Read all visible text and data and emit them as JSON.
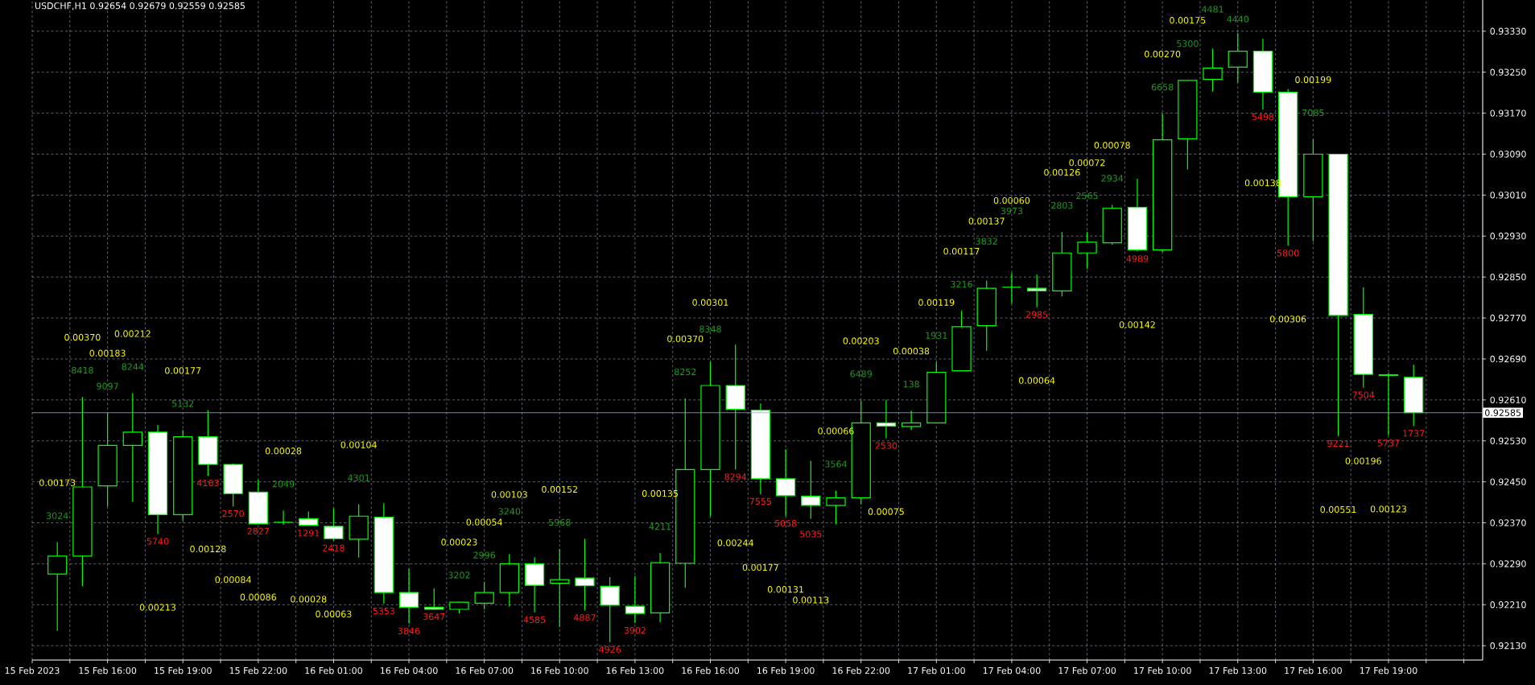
{
  "chart_data": {
    "type": "candlestick",
    "title": "USDCHF,H1  0.92654 0.92679 0.92559 0.92585",
    "color": "#00ff00",
    "grid": true,
    "x": [
      "2023-02-15T14:00",
      "2023-02-15T15:00",
      "2023-02-15T16:00",
      "2023-02-15T17:00",
      "2023-02-15T18:00",
      "2023-02-15T19:00",
      "2023-02-15T20:00",
      "2023-02-15T21:00",
      "2023-02-15T22:00",
      "2023-02-15T23:00",
      "2023-02-16T00:00",
      "2023-02-16T01:00",
      "2023-02-16T02:00",
      "2023-02-16T03:00",
      "2023-02-16T04:00",
      "2023-02-16T05:00",
      "2023-02-16T06:00",
      "2023-02-16T07:00",
      "2023-02-16T08:00",
      "2023-02-16T09:00",
      "2023-02-16T10:00",
      "2023-02-16T11:00",
      "2023-02-16T12:00",
      "2023-02-16T13:00",
      "2023-02-16T14:00",
      "2023-02-16T15:00",
      "2023-02-16T16:00",
      "2023-02-16T17:00",
      "2023-02-16T18:00",
      "2023-02-16T19:00",
      "2023-02-16T20:00",
      "2023-02-16T21:00",
      "2023-02-16T22:00",
      "2023-02-16T23:00",
      "2023-02-17T00:00",
      "2023-02-17T01:00",
      "2023-02-17T02:00",
      "2023-02-17T03:00",
      "2023-02-17T04:00",
      "2023-02-17T05:00",
      "2023-02-17T06:00",
      "2023-02-17T07:00",
      "2023-02-17T08:00",
      "2023-02-17T09:00",
      "2023-02-17T10:00",
      "2023-02-17T11:00",
      "2023-02-17T12:00",
      "2023-02-17T13:00",
      "2023-02-17T14:00",
      "2023-02-17T15:00",
      "2023-02-17T16:00",
      "2023-02-17T17:00",
      "2023-02-17T18:00",
      "2023-02-17T19:00",
      "2023-02-17T20:00"
    ],
    "ohlc": [
      [
        0.9227,
        0.92332,
        0.92159,
        0.92305
      ],
      [
        0.92305,
        0.92616,
        0.92246,
        0.9244
      ],
      [
        0.92442,
        0.92585,
        0.92402,
        0.92521
      ],
      [
        0.92521,
        0.92623,
        0.92411,
        0.92547
      ],
      [
        0.92547,
        0.92561,
        0.92348,
        0.92386
      ],
      [
        0.92386,
        0.92551,
        0.92374,
        0.92538
      ],
      [
        0.92538,
        0.9259,
        0.92462,
        0.92484
      ],
      [
        0.92484,
        0.92486,
        0.92402,
        0.92427
      ],
      [
        0.9243,
        0.92454,
        0.92368,
        0.92368
      ],
      [
        0.92371,
        0.92394,
        0.92366,
        0.92371
      ],
      [
        0.92378,
        0.92392,
        0.92364,
        0.92365
      ],
      [
        0.92363,
        0.92398,
        0.92335,
        0.92339
      ],
      [
        0.92338,
        0.92406,
        0.92302,
        0.92383
      ],
      [
        0.92381,
        0.92408,
        0.92212,
        0.92234
      ],
      [
        0.92234,
        0.9228,
        0.92173,
        0.92205
      ],
      [
        0.92205,
        0.92242,
        0.92201,
        0.92201
      ],
      [
        0.92201,
        0.92216,
        0.92193,
        0.92215
      ],
      [
        0.92213,
        0.92255,
        0.92201,
        0.92234
      ],
      [
        0.92234,
        0.92309,
        0.92206,
        0.9229
      ],
      [
        0.9229,
        0.92303,
        0.92195,
        0.92248
      ],
      [
        0.92252,
        0.92319,
        0.92167,
        0.92259
      ],
      [
        0.92262,
        0.92339,
        0.92199,
        0.92247
      ],
      [
        0.92246,
        0.92264,
        0.92137,
        0.92209
      ],
      [
        0.92207,
        0.92266,
        0.92174,
        0.92193
      ],
      [
        0.92194,
        0.92311,
        0.92176,
        0.92292
      ],
      [
        0.92291,
        0.92613,
        0.92243,
        0.92474
      ],
      [
        0.92474,
        0.92684,
        0.92383,
        0.92638
      ],
      [
        0.92638,
        0.92718,
        0.92474,
        0.92592
      ],
      [
        0.9259,
        0.92603,
        0.92426,
        0.92456
      ],
      [
        0.92456,
        0.92514,
        0.92383,
        0.92423
      ],
      [
        0.92422,
        0.92491,
        0.92378,
        0.92404
      ],
      [
        0.92404,
        0.92433,
        0.92367,
        0.92419
      ],
      [
        0.92419,
        0.92609,
        0.92406,
        0.92565
      ],
      [
        0.92565,
        0.9261,
        0.92535,
        0.92559
      ],
      [
        0.92558,
        0.92589,
        0.92551,
        0.92565
      ],
      [
        0.92565,
        0.92684,
        0.92565,
        0.92664
      ],
      [
        0.92667,
        0.92784,
        0.92667,
        0.92753
      ],
      [
        0.92755,
        0.92843,
        0.92706,
        0.92828
      ],
      [
        0.9283,
        0.92858,
        0.92798,
        0.9283
      ],
      [
        0.92828,
        0.92855,
        0.92791,
        0.92823
      ],
      [
        0.92823,
        0.92938,
        0.92812,
        0.92897
      ],
      [
        0.92897,
        0.92938,
        0.92866,
        0.92918
      ],
      [
        0.92917,
        0.92991,
        0.92913,
        0.92984
      ],
      [
        0.92986,
        0.93042,
        0.929,
        0.92903
      ],
      [
        0.92903,
        0.93169,
        0.92899,
        0.93118
      ],
      [
        0.9312,
        0.93235,
        0.9306,
        0.93234
      ],
      [
        0.93236,
        0.93296,
        0.93212,
        0.93258
      ],
      [
        0.9326,
        0.93327,
        0.9323,
        0.93291
      ],
      [
        0.93291,
        0.93315,
        0.93177,
        0.93211
      ],
      [
        0.93211,
        0.93217,
        0.92911,
        0.93007
      ],
      [
        0.93007,
        0.93119,
        0.9292,
        0.9309
      ],
      [
        0.9309,
        0.9309,
        0.92539,
        0.92775
      ],
      [
        0.92777,
        0.9283,
        0.92634,
        0.9266
      ],
      [
        0.92659,
        0.92663,
        0.9254,
        0.92658
      ],
      [
        0.92654,
        0.92679,
        0.92559,
        0.92585
      ]
    ],
    "xlim": [
      "2023-02-15T13:00",
      "2023-02-17T22:45"
    ],
    "xticks": [
      {
        "value": "2023-02-15T13:00",
        "label": "15 Feb 2023"
      },
      {
        "value": "2023-02-15T14:30",
        "label": null
      },
      {
        "value": "2023-02-15T16:00",
        "label": "15 Feb 16:00"
      },
      {
        "value": "2023-02-15T17:30",
        "label": null
      },
      {
        "value": "2023-02-15T19:00",
        "label": "15 Feb 19:00"
      },
      {
        "value": "2023-02-15T20:30",
        "label": null
      },
      {
        "value": "2023-02-15T22:00",
        "label": "15 Feb 22:00"
      },
      {
        "value": "2023-02-15T23:30",
        "label": null
      },
      {
        "value": "2023-02-16T01:00",
        "label": "16 Feb 01:00"
      },
      {
        "value": "2023-02-16T02:30",
        "label": null
      },
      {
        "value": "2023-02-16T04:00",
        "label": "16 Feb 04:00"
      },
      {
        "value": "2023-02-16T05:30",
        "label": null
      },
      {
        "value": "2023-02-16T07:00",
        "label": "16 Feb 07:00"
      },
      {
        "value": "2023-02-16T08:30",
        "label": null
      },
      {
        "value": "2023-02-16T10:00",
        "label": "16 Feb 10:00"
      },
      {
        "value": "2023-02-16T11:30",
        "label": null
      },
      {
        "value": "2023-02-16T13:00",
        "label": "16 Feb 13:00"
      },
      {
        "value": "2023-02-16T14:30",
        "label": null
      },
      {
        "value": "2023-02-16T16:00",
        "label": "16 Feb 16:00"
      },
      {
        "value": "2023-02-16T17:30",
        "label": null
      },
      {
        "value": "2023-02-16T19:00",
        "label": "16 Feb 19:00"
      },
      {
        "value": "2023-02-16T20:30",
        "label": null
      },
      {
        "value": "2023-02-16T22:00",
        "label": "16 Feb 22:00"
      },
      {
        "value": "2023-02-16T23:30",
        "label": null
      },
      {
        "value": "2023-02-17T01:00",
        "label": "17 Feb 01:00"
      },
      {
        "value": "2023-02-17T02:30",
        "label": null
      },
      {
        "value": "2023-02-17T04:00",
        "label": "17 Feb 04:00"
      },
      {
        "value": "2023-02-17T05:30",
        "label": null
      },
      {
        "value": "2023-02-17T07:00",
        "label": "17 Feb 07:00"
      },
      {
        "value": "2023-02-17T08:30",
        "label": null
      },
      {
        "value": "2023-02-17T10:00",
        "label": "17 Feb 10:00"
      },
      {
        "value": "2023-02-17T11:30",
        "label": null
      },
      {
        "value": "2023-02-17T13:00",
        "label": "17 Feb 13:00"
      },
      {
        "value": "2023-02-17T14:30",
        "label": null
      },
      {
        "value": "2023-02-17T16:00",
        "label": "17 Feb 16:00"
      },
      {
        "value": "2023-02-17T17:30",
        "label": null
      },
      {
        "value": "2023-02-17T19:00",
        "label": "17 Feb 19:00"
      },
      {
        "value": "2023-02-17T20:30",
        "label": null
      },
      {
        "value": "2023-02-17T22:00",
        "label": null
      }
    ],
    "ylim": [
      0.92102,
      0.93391
    ],
    "yticks": [
      {
        "value": 0.9213,
        "label": "0.92130"
      },
      {
        "value": 0.9221,
        "label": "0.92210"
      },
      {
        "value": 0.9229,
        "label": "0.92290"
      },
      {
        "value": 0.9237,
        "label": "0.92370"
      },
      {
        "value": 0.9245,
        "label": "0.92450"
      },
      {
        "value": 0.9253,
        "label": "0.92530"
      },
      {
        "value": 0.9261,
        "label": "0.92610"
      },
      {
        "value": 0.9269,
        "label": "0.92690"
      },
      {
        "value": 0.9277,
        "label": "0.92770"
      },
      {
        "value": 0.9285,
        "label": "0.92850"
      },
      {
        "value": 0.9293,
        "label": "0.92930"
      },
      {
        "value": 0.9301,
        "label": "0.93010"
      },
      {
        "value": 0.9309,
        "label": "0.93090"
      },
      {
        "value": 0.9317,
        "label": "0.93170"
      },
      {
        "value": 0.9325,
        "label": "0.93250"
      },
      {
        "value": 0.9333,
        "label": "0.93330"
      }
    ],
    "ref_lines": [
      {
        "axis": "y",
        "value": 0.92585,
        "label": "0.92585",
        "color": "#a0a8b8"
      }
    ],
    "value_labels": [
      "3024",
      "8418",
      "9097",
      "8244",
      "5740",
      "5132",
      "4163",
      "2570",
      "2827",
      "2049",
      "1291",
      "2418",
      "4301",
      "5353",
      "3846",
      "3647",
      "3202",
      "2996",
      "3240",
      "4585",
      "5968",
      "4887",
      "4926",
      "3902",
      "4211",
      "8252",
      "8348",
      "8294",
      "7555",
      "5058",
      "5035",
      "3564",
      "6489",
      "2530",
      "138",
      "1931",
      "3216",
      "3832",
      "3973",
      "2985",
      "2803",
      "2565",
      "2934",
      "4989",
      "6658",
      "5300",
      "4481",
      "4440",
      "5498",
      "5800",
      "7085",
      "9221",
      "7504",
      "5737",
      "1737"
    ],
    "annotations": [
      "0.00173",
      "0.00370",
      "0.00183",
      "0.00212",
      "0.00213",
      "0.00177",
      "0.00128",
      "0.00084",
      "0.00086",
      "0.00028",
      "0.00028",
      "0.00063",
      "0.00104",
      null,
      null,
      null,
      "0.00023",
      "0.00054",
      "0.00103",
      null,
      "0.00152",
      null,
      null,
      null,
      "0.00135",
      "0.00370",
      "0.00301",
      "0.00244",
      "0.00177",
      "0.00131",
      "0.00113",
      "0.00066",
      "0.00203",
      "0.00075",
      "0.00038",
      "0.00119",
      "0.00117",
      "0.00137",
      "0.00060",
      "0.00064",
      "0.00126",
      "0.00072",
      "0.00078",
      "0.00142",
      "0.00270",
      "0.00175",
      null,
      null,
      "0.00138",
      "0.00306",
      "0.00199",
      "0.00551",
      "0.00196",
      "0.00123",
      null
    ]
  }
}
